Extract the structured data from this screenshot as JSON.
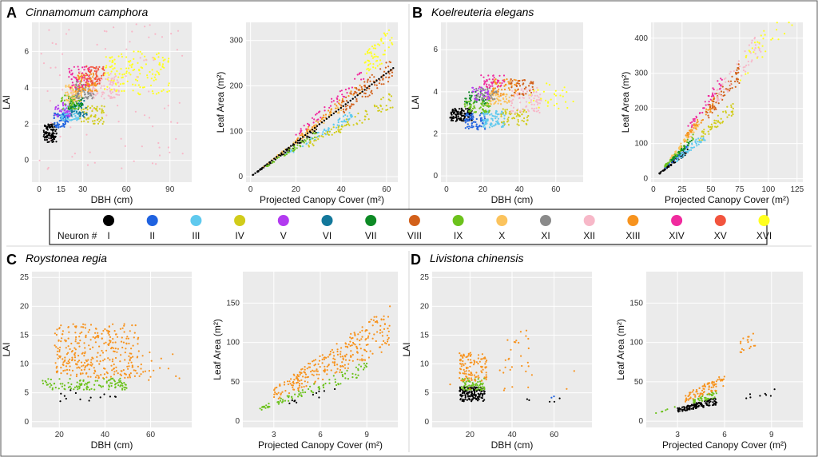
{
  "colors": {
    "I": "#000000",
    "II": "#1f62e0",
    "III": "#5fc9ee",
    "IV": "#d1cc1a",
    "V": "#b23af0",
    "VI": "#13789b",
    "VII": "#0d8a25",
    "VIII": "#d2601a",
    "IX": "#6cc21c",
    "X": "#fbc35d",
    "XI": "#8a8a8a",
    "XII": "#f7b8c8",
    "XIII": "#f7931e",
    "XIV": "#f02a9e",
    "XV": "#f2543e",
    "XVI": "#ffff1e"
  },
  "legend": {
    "title": "Neuron #",
    "items": [
      "I",
      "II",
      "III",
      "IV",
      "V",
      "VI",
      "VII",
      "VIII",
      "IX",
      "X",
      "XI",
      "XII",
      "XIII",
      "XIV",
      "XV",
      "XVI"
    ]
  },
  "panels": [
    {
      "letter": "A",
      "species": "Cinnamomum camphora"
    },
    {
      "letter": "B",
      "species": "Koelreuteria elegans"
    },
    {
      "letter": "C",
      "species": "Roystonea regia"
    },
    {
      "letter": "D",
      "species": "Livistona chinensis"
    }
  ],
  "chart_data": [
    {
      "id": "A1",
      "panel": "A",
      "type": "scatter",
      "xlabel": "DBH (cm)",
      "ylabel": "LAI",
      "xlim": [
        -5,
        105
      ],
      "ylim": [
        -1.2,
        7.6
      ],
      "xticks": [
        0,
        15,
        30,
        60,
        90
      ],
      "yticks": [
        0,
        2,
        4,
        6
      ],
      "clusters": [
        {
          "neuron": "I",
          "x": [
            3,
            12
          ],
          "y": [
            1.0,
            2.0
          ],
          "n": 110
        },
        {
          "neuron": "II",
          "x": [
            10,
            20
          ],
          "y": [
            1.8,
            2.6
          ],
          "n": 70
        },
        {
          "neuron": "III",
          "x": [
            15,
            28
          ],
          "y": [
            2.2,
            3.0
          ],
          "n": 70
        },
        {
          "neuron": "IV",
          "x": [
            28,
            45
          ],
          "y": [
            2.0,
            3.0
          ],
          "n": 60
        },
        {
          "neuron": "V",
          "x": [
            10,
            22
          ],
          "y": [
            2.4,
            3.2
          ],
          "n": 40
        },
        {
          "neuron": "VI",
          "x": [
            22,
            34
          ],
          "y": [
            2.4,
            3.4
          ],
          "n": 50
        },
        {
          "neuron": "VII",
          "x": [
            20,
            30
          ],
          "y": [
            2.8,
            3.6
          ],
          "n": 50
        },
        {
          "neuron": "IX",
          "x": [
            15,
            28
          ],
          "y": [
            2.8,
            3.6
          ],
          "n": 40
        },
        {
          "neuron": "X",
          "x": [
            18,
            30
          ],
          "y": [
            3.2,
            4.2
          ],
          "n": 70
        },
        {
          "neuron": "XI",
          "x": [
            25,
            38
          ],
          "y": [
            3.4,
            4.4
          ],
          "n": 80
        },
        {
          "neuron": "XII",
          "x": [
            35,
            55
          ],
          "y": [
            3.4,
            4.6
          ],
          "n": 80
        },
        {
          "neuron": "XIII",
          "x": [
            25,
            40
          ],
          "y": [
            3.8,
            4.8
          ],
          "n": 80
        },
        {
          "neuron": "XIV",
          "x": [
            20,
            35
          ],
          "y": [
            4.0,
            5.2
          ],
          "n": 50
        },
        {
          "neuron": "XV",
          "x": [
            32,
            45
          ],
          "y": [
            4.2,
            5.2
          ],
          "n": 60
        },
        {
          "neuron": "XVI",
          "x": [
            45,
            90
          ],
          "y": [
            3.6,
            6.0
          ],
          "n": 140
        },
        {
          "neuron": "XII",
          "x": [
            0,
            100
          ],
          "y": [
            -0.5,
            7.5
          ],
          "n": 90
        }
      ]
    },
    {
      "id": "A2",
      "panel": "A",
      "type": "scatter",
      "xlabel": "Projected Canopy Cover (m²)",
      "ylabel": "Leaf Area (m²)",
      "xlim": [
        -2,
        65
      ],
      "ylim": [
        -12,
        340
      ],
      "xticks": [
        0,
        20,
        40,
        60
      ],
      "yticks": [
        0,
        100,
        200,
        300
      ],
      "trend": {
        "x": [
          1,
          63
        ],
        "slope": 3.8
      },
      "clusters": [
        {
          "neuron": "I",
          "x": [
            1,
            30
          ],
          "s": [
            3.3,
            3.8
          ],
          "n": 70
        },
        {
          "neuron": "III",
          "x": [
            15,
            45
          ],
          "s": [
            2.8,
            3.3
          ],
          "n": 60
        },
        {
          "neuron": "IV",
          "x": [
            25,
            63
          ],
          "s": [
            2.4,
            3.0
          ],
          "n": 80
        },
        {
          "neuron": "X",
          "x": [
            5,
            40
          ],
          "s": [
            3.6,
            4.0
          ],
          "n": 60
        },
        {
          "neuron": "XIII",
          "x": [
            20,
            50
          ],
          "s": [
            3.8,
            4.3
          ],
          "n": 60
        },
        {
          "neuron": "VIII",
          "x": [
            40,
            63
          ],
          "s": [
            3.4,
            4.2
          ],
          "n": 90
        },
        {
          "neuron": "XVI",
          "x": [
            50,
            63
          ],
          "s": [
            4.3,
            5.4
          ],
          "n": 60
        },
        {
          "neuron": "XIV",
          "x": [
            20,
            50
          ],
          "s": [
            4.2,
            4.8
          ],
          "n": 50
        },
        {
          "neuron": "IX",
          "x": [
            5,
            30
          ],
          "s": [
            3.0,
            3.5
          ],
          "n": 40
        }
      ]
    },
    {
      "id": "B1",
      "panel": "B",
      "type": "scatter",
      "xlabel": "DBH (cm)",
      "ylabel": "LAI",
      "xlim": [
        -3,
        75
      ],
      "ylim": [
        -0.3,
        7.3
      ],
      "xticks": [
        0,
        20,
        40,
        60
      ],
      "yticks": [
        0,
        2,
        4,
        6
      ],
      "clusters": [
        {
          "neuron": "I",
          "x": [
            2,
            14
          ],
          "y": [
            2.6,
            3.2
          ],
          "n": 120
        },
        {
          "neuron": "II",
          "x": [
            10,
            22
          ],
          "y": [
            2.2,
            3.0
          ],
          "n": 70
        },
        {
          "neuron": "III",
          "x": [
            20,
            32
          ],
          "y": [
            2.3,
            3.1
          ],
          "n": 80
        },
        {
          "neuron": "IV",
          "x": [
            30,
            45
          ],
          "y": [
            2.4,
            3.2
          ],
          "n": 60
        },
        {
          "neuron": "VII",
          "x": [
            10,
            22
          ],
          "y": [
            3.4,
            4.0
          ],
          "n": 40
        },
        {
          "neuron": "IX",
          "x": [
            10,
            24
          ],
          "y": [
            3.0,
            3.6
          ],
          "n": 60
        },
        {
          "neuron": "X",
          "x": [
            22,
            35
          ],
          "y": [
            3.4,
            4.0
          ],
          "n": 60
        },
        {
          "neuron": "XI",
          "x": [
            16,
            28
          ],
          "y": [
            3.6,
            4.2
          ],
          "n": 50
        },
        {
          "neuron": "XII",
          "x": [
            35,
            52
          ],
          "y": [
            3.0,
            4.2
          ],
          "n": 80
        },
        {
          "neuron": "XIII",
          "x": [
            25,
            40
          ],
          "y": [
            3.8,
            4.6
          ],
          "n": 60
        },
        {
          "neuron": "XIV",
          "x": [
            18,
            32
          ],
          "y": [
            4.2,
            4.8
          ],
          "n": 40
        },
        {
          "neuron": "VIII",
          "x": [
            35,
            48
          ],
          "y": [
            3.8,
            4.6
          ],
          "n": 40
        },
        {
          "neuron": "XVI",
          "x": [
            45,
            70
          ],
          "y": [
            3.2,
            4.4
          ],
          "n": 30
        },
        {
          "neuron": "V",
          "x": [
            14,
            24
          ],
          "y": [
            3.6,
            4.2
          ],
          "n": 30
        }
      ]
    },
    {
      "id": "B2",
      "panel": "B",
      "type": "scatter",
      "xlabel": "Projected Canopy Cover (m²)",
      "ylabel": "Leaf Area (m²)",
      "xlim": [
        -2,
        130
      ],
      "ylim": [
        -10,
        445
      ],
      "xticks": [
        0,
        25,
        50,
        75,
        100,
        125
      ],
      "yticks": [
        0,
        100,
        200,
        300,
        400
      ],
      "clusters": [
        {
          "neuron": "I",
          "x": [
            5,
            30
          ],
          "s": [
            2.4,
            3.0
          ],
          "n": 70
        },
        {
          "neuron": "II",
          "x": [
            10,
            30
          ],
          "s": [
            2.8,
            3.3
          ],
          "n": 40
        },
        {
          "neuron": "III",
          "x": [
            20,
            45
          ],
          "s": [
            2.4,
            3.0
          ],
          "n": 50
        },
        {
          "neuron": "IV",
          "x": [
            40,
            70
          ],
          "s": [
            2.6,
            3.2
          ],
          "n": 50
        },
        {
          "neuron": "IX",
          "x": [
            10,
            35
          ],
          "s": [
            3.2,
            3.8
          ],
          "n": 50
        },
        {
          "neuron": "X",
          "x": [
            15,
            40
          ],
          "s": [
            3.6,
            4.2
          ],
          "n": 50
        },
        {
          "neuron": "XIII",
          "x": [
            25,
            55
          ],
          "s": [
            3.8,
            4.4
          ],
          "n": 50
        },
        {
          "neuron": "VIII",
          "x": [
            45,
            75
          ],
          "s": [
            3.6,
            4.4
          ],
          "n": 60
        },
        {
          "neuron": "XII",
          "x": [
            55,
            95
          ],
          "s": [
            3.8,
            4.6
          ],
          "n": 60
        },
        {
          "neuron": "XIV",
          "x": [
            30,
            60
          ],
          "s": [
            4.4,
            5.0
          ],
          "n": 40
        },
        {
          "neuron": "XVI",
          "x": [
            75,
            125
          ],
          "s": [
            3.6,
            4.4
          ],
          "n": 40
        },
        {
          "neuron": "VII",
          "x": [
            15,
            35
          ],
          "s": [
            3.0,
            3.5
          ],
          "n": 30
        }
      ]
    },
    {
      "id": "C1",
      "panel": "C",
      "type": "scatter",
      "xlabel": "DBH (cm)",
      "ylabel": "LAI",
      "xlim": [
        8,
        78
      ],
      "ylim": [
        -1,
        26
      ],
      "xticks": [
        20,
        40,
        60
      ],
      "yticks": [
        0,
        5,
        10,
        15,
        20,
        25
      ],
      "clusters": [
        {
          "neuron": "XIII",
          "x": [
            18,
            55
          ],
          "y": [
            7.5,
            17
          ],
          "n": 320
        },
        {
          "neuron": "XIII",
          "x": [
            50,
            75
          ],
          "y": [
            7,
            13
          ],
          "n": 20
        },
        {
          "neuron": "IX",
          "x": [
            12,
            50
          ],
          "y": [
            5.5,
            7.5
          ],
          "n": 110
        },
        {
          "neuron": "I",
          "x": [
            20,
            45
          ],
          "y": [
            3.5,
            5.5
          ],
          "n": 14
        }
      ]
    },
    {
      "id": "C2",
      "panel": "C",
      "type": "scatter",
      "xlabel": "Projected Canopy Cover (m²)",
      "ylabel": "Leaf Area (m²)",
      "xlim": [
        1,
        11
      ],
      "ylim": [
        -8,
        190
      ],
      "xticks": [
        3,
        6,
        9
      ],
      "yticks": [
        0,
        50,
        100,
        150
      ],
      "clusters": [
        {
          "neuron": "XIII",
          "x": [
            3,
            10.5
          ],
          "s": [
            8.5,
            14
          ],
          "n": 280
        },
        {
          "neuron": "IX",
          "x": [
            2,
            9
          ],
          "s": [
            6.5,
            8.5
          ],
          "n": 90
        },
        {
          "neuron": "I",
          "x": [
            4,
            7
          ],
          "s": [
            5,
            6.5
          ],
          "n": 12
        }
      ]
    },
    {
      "id": "D1",
      "panel": "D",
      "type": "scatter",
      "xlabel": "DBH (cm)",
      "ylabel": "LAI",
      "xlim": [
        2,
        78
      ],
      "ylim": [
        -1,
        26
      ],
      "xticks": [
        20,
        40,
        60
      ],
      "yticks": [
        0,
        5,
        10,
        15,
        20,
        25
      ],
      "clusters": [
        {
          "neuron": "I",
          "x": [
            15,
            27
          ],
          "y": [
            3.5,
            6
          ],
          "n": 160
        },
        {
          "neuron": "IX",
          "x": [
            16,
            27
          ],
          "y": [
            5.5,
            7.5
          ],
          "n": 60
        },
        {
          "neuron": "XIII",
          "x": [
            15,
            28
          ],
          "y": [
            7,
            12
          ],
          "n": 110
        },
        {
          "neuron": "XIII",
          "x": [
            35,
            48
          ],
          "y": [
            8,
            16
          ],
          "n": 22
        },
        {
          "neuron": "XIII",
          "x": [
            5,
            75
          ],
          "y": [
            5,
            9
          ],
          "n": 14
        },
        {
          "neuron": "I",
          "x": [
            45,
            65
          ],
          "y": [
            3,
            5
          ],
          "n": 5
        },
        {
          "neuron": "II",
          "x": [
            55,
            62
          ],
          "y": [
            3.5,
            4.5
          ],
          "n": 2
        }
      ]
    },
    {
      "id": "D2",
      "panel": "D",
      "type": "scatter",
      "xlabel": "Projected Canopy Cover (m²)",
      "ylabel": "Leaf Area (m²)",
      "xlim": [
        1,
        11
      ],
      "ylim": [
        -8,
        190
      ],
      "xticks": [
        3,
        6,
        9
      ],
      "yticks": [
        0,
        50,
        100,
        150
      ],
      "clusters": [
        {
          "neuron": "I",
          "x": [
            3,
            5.5
          ],
          "s": [
            3.8,
            5.5
          ],
          "n": 120
        },
        {
          "neuron": "IX",
          "x": [
            4,
            5.5
          ],
          "s": [
            5.5,
            7
          ],
          "n": 40
        },
        {
          "neuron": "XIII",
          "x": [
            3.5,
            6
          ],
          "s": [
            7,
            10
          ],
          "n": 80
        },
        {
          "neuron": "XIII",
          "x": [
            7,
            8
          ],
          "s": [
            12,
            15
          ],
          "n": 18
        },
        {
          "neuron": "I",
          "x": [
            7,
            10
          ],
          "s": [
            3.5,
            4.5
          ],
          "n": 8
        },
        {
          "neuron": "IX",
          "x": [
            1.5,
            3
          ],
          "s": [
            6,
            8
          ],
          "n": 6
        }
      ]
    }
  ]
}
